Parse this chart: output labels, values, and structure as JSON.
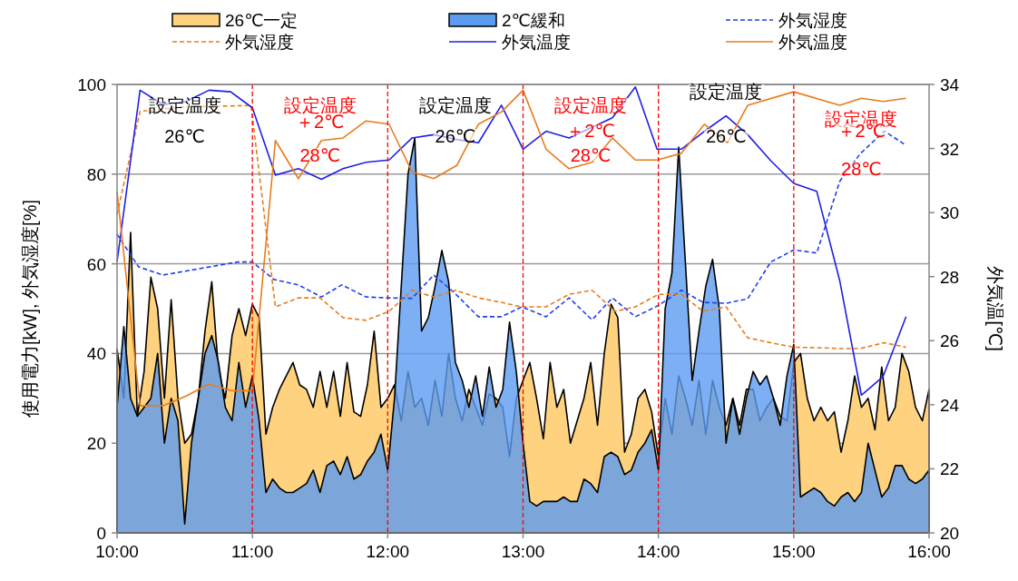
{
  "chart_data": {
    "type": "area",
    "xlim": [
      10,
      16
    ],
    "xticks": [
      {
        "value": 10,
        "label": "10:00"
      },
      {
        "value": 11,
        "label": "11:00"
      },
      {
        "value": 12,
        "label": "12:00"
      },
      {
        "value": 13,
        "label": "13:00"
      },
      {
        "value": 14,
        "label": "14:00"
      },
      {
        "value": 15,
        "label": "15:00"
      },
      {
        "value": 16,
        "label": "16:00"
      }
    ],
    "ylim": [
      0,
      100
    ],
    "yticks": [
      0,
      20,
      40,
      60,
      80,
      100
    ],
    "y2lim": [
      20,
      34
    ],
    "y2ticks": [
      20,
      22,
      24,
      26,
      28,
      30,
      32,
      34
    ],
    "ylabel": "使用電力[kW], 外気湿度[%]",
    "y2label": "外気温[℃]",
    "grid": "y",
    "legend": "top",
    "x": [
      10,
      10.05,
      10.1,
      10.15,
      10.2,
      10.25,
      10.3,
      10.35,
      10.4,
      10.45,
      10.5,
      10.55,
      10.6,
      10.65,
      10.7,
      10.75,
      10.8,
      10.85,
      10.9,
      10.95,
      11,
      11.05,
      11.1,
      11.15,
      11.2,
      11.25,
      11.3,
      11.35,
      11.4,
      11.45,
      11.5,
      11.55,
      11.6,
      11.65,
      11.7,
      11.75,
      11.8,
      11.85,
      11.9,
      11.95,
      12,
      12.05,
      12.1,
      12.15,
      12.2,
      12.25,
      12.3,
      12.35,
      12.4,
      12.45,
      12.5,
      12.55,
      12.6,
      12.65,
      12.7,
      12.75,
      12.8,
      12.85,
      12.9,
      12.95,
      13,
      13.05,
      13.1,
      13.15,
      13.2,
      13.25,
      13.3,
      13.35,
      13.4,
      13.45,
      13.5,
      13.55,
      13.6,
      13.65,
      13.7,
      13.75,
      13.8,
      13.85,
      13.9,
      13.95,
      14,
      14.05,
      14.1,
      14.15,
      14.2,
      14.25,
      14.3,
      14.35,
      14.4,
      14.45,
      14.5,
      14.55,
      14.6,
      14.65,
      14.7,
      14.75,
      14.8,
      14.85,
      14.9,
      14.95,
      15,
      15.05,
      15.1,
      15.15,
      15.2,
      15.25,
      15.3,
      15.35,
      15.4,
      15.45,
      15.5,
      15.55,
      15.6,
      15.65,
      15.7,
      15.75,
      15.8,
      15.85,
      15.9,
      15.95,
      16
    ],
    "series": [
      {
        "name": "26℃一定",
        "type": "area",
        "color": "#ffd27f",
        "values": [
          41,
          30,
          67,
          26,
          36,
          57,
          50,
          30,
          52,
          30,
          20,
          22,
          30,
          45,
          56,
          36,
          30,
          44,
          50,
          44,
          51,
          48,
          22,
          28,
          32,
          35,
          38,
          33,
          32,
          28,
          36,
          28,
          36,
          26,
          38,
          27,
          26,
          33,
          45,
          28,
          30,
          33,
          25,
          36,
          28,
          30,
          24,
          34,
          26,
          40,
          30,
          25,
          32,
          28,
          24,
          31,
          30,
          28,
          17,
          30,
          34,
          38,
          30,
          21,
          38,
          28,
          32,
          20,
          25,
          30,
          38,
          24,
          40,
          51,
          48,
          18,
          22,
          30,
          32,
          27,
          17,
          30,
          22,
          35,
          30,
          24,
          34,
          22,
          34,
          28,
          24,
          30,
          24,
          32,
          32,
          25,
          28,
          30,
          26,
          25,
          38,
          40,
          30,
          25,
          28,
          25,
          27,
          18,
          25,
          35,
          28,
          30,
          23,
          37,
          25,
          28,
          40,
          36,
          28,
          25,
          32
        ]
      },
      {
        "name": "2℃緩和",
        "type": "area",
        "color": "#5b9bf0",
        "values": [
          28,
          46,
          30,
          26,
          28,
          30,
          40,
          20,
          30,
          25,
          2,
          20,
          30,
          40,
          44,
          38,
          28,
          25,
          38,
          28,
          35,
          25,
          9,
          12,
          10,
          9,
          9,
          10,
          11,
          14,
          9,
          15,
          16,
          13,
          17,
          12,
          13,
          16,
          18,
          22,
          14,
          30,
          55,
          80,
          88,
          45,
          48,
          55,
          63,
          56,
          38,
          34,
          28,
          35,
          26,
          37,
          28,
          32,
          47,
          36,
          20,
          7,
          6,
          7,
          7,
          7,
          8,
          7,
          7,
          12,
          11,
          9,
          17,
          18,
          17,
          13,
          14,
          18,
          20,
          23,
          14,
          50,
          58,
          86,
          60,
          34,
          45,
          55,
          61,
          50,
          20,
          30,
          22,
          30,
          36,
          33,
          35,
          30,
          24,
          35,
          42,
          8,
          9,
          10,
          9,
          7,
          6,
          8,
          9,
          7,
          9,
          20,
          14,
          8,
          10,
          15,
          15,
          12,
          11,
          12,
          14
        ]
      },
      {
        "name": "外気湿度",
        "type": "line",
        "line_style": "dashed",
        "color": "#1f3ff0",
        "x": [
          10,
          10.16,
          10.34,
          10.89,
          11,
          11.16,
          11.34,
          11.51,
          11.66,
          11.84,
          12.01,
          12.18,
          12.34,
          12.49,
          12.67,
          12.84,
          12.99,
          13.17,
          13.34,
          13.51,
          13.66,
          13.83,
          14,
          14.17,
          14.33,
          14.5,
          14.66,
          14.83,
          15,
          15.17,
          15.34,
          15.49,
          15.67,
          15.83
        ],
        "values": [
          66.6,
          59.3,
          57.5,
          60.4,
          60.4,
          56.5,
          55.3,
          52.6,
          55.3,
          52.6,
          52.4,
          52.3,
          57.5,
          53.6,
          48.2,
          48.2,
          50.4,
          48.2,
          52.4,
          47.5,
          52.4,
          48.2,
          50.7,
          54.1,
          51.4,
          51.2,
          52.2,
          60.4,
          63.1,
          62.4,
          78.4,
          84.5,
          89.6,
          86.4
        ]
      },
      {
        "name": "外気湿度",
        "type": "line",
        "line_style": "dashed",
        "color": "#e87c1e",
        "x": [
          10,
          10.17,
          10.5,
          10.99,
          11.17,
          11.34,
          11.5,
          11.67,
          11.84,
          12.01,
          12.18,
          12.34,
          12.5,
          12.67,
          12.84,
          12.99,
          13.17,
          13.34,
          13.51,
          13.68,
          13.83,
          14,
          14.17,
          14.33,
          14.5,
          14.66,
          14.83,
          15,
          15.17,
          15.34,
          15.49,
          15.67,
          15.83
        ],
        "values": [
          71,
          94,
          95,
          95.3,
          50.4,
          52.4,
          52.4,
          48,
          47.4,
          49.4,
          54.1,
          52.6,
          54.1,
          52.4,
          51.4,
          50.4,
          50.4,
          53.2,
          54.1,
          49.4,
          50.4,
          53.2,
          53.2,
          49.4,
          50.4,
          43.5,
          42.4,
          41.4,
          41.3,
          41.1,
          41.1,
          42.4,
          41.4
        ]
      },
      {
        "name": "外気温度",
        "type": "line",
        "axis": "y2",
        "color": "#1f1fe6",
        "x": [
          10,
          10.17,
          10.34,
          10.51,
          10.68,
          10.84,
          11,
          11.17,
          11.34,
          11.51,
          11.67,
          11.84,
          12.01,
          12.18,
          12.34,
          12.51,
          12.67,
          12.84,
          13,
          13.17,
          13.34,
          13.66,
          13.83,
          13.99,
          14.17,
          14.34,
          14.5,
          14.66,
          14.83,
          15,
          15.17,
          15.34,
          15.5,
          15.66,
          15.83
        ],
        "values": [
          28.46,
          33.82,
          33.37,
          33.47,
          33.82,
          33.77,
          33.27,
          31.17,
          31.37,
          31.04,
          31.37,
          31.57,
          31.64,
          32.33,
          32.43,
          32.28,
          32.18,
          33.35,
          31.98,
          32.54,
          32.33,
          32.96,
          33.92,
          31.98,
          31.98,
          32.54,
          33.02,
          32.43,
          31.62,
          30.91,
          30.66,
          27.87,
          24.3,
          24.88,
          26.75
        ]
      },
      {
        "name": "外気温度",
        "type": "line",
        "axis": "y2",
        "color": "#e87c1e",
        "x": [
          10,
          10.17,
          10.34,
          10.51,
          10.68,
          10.84,
          11,
          11.17,
          11.34,
          11.51,
          11.67,
          11.84,
          12.01,
          12.18,
          12.34,
          12.51,
          12.67,
          12.84,
          13,
          13.17,
          13.34,
          13.51,
          13.66,
          13.83,
          13.99,
          14.17,
          14.34,
          14.51,
          14.66,
          15,
          15.34,
          15.5,
          15.66,
          15.83
        ],
        "values": [
          30.66,
          23.97,
          23.97,
          24.27,
          24.65,
          24.44,
          24.44,
          32.25,
          31.06,
          32.25,
          32.33,
          32.86,
          32.76,
          31.27,
          31.06,
          31.47,
          32.76,
          33.14,
          33.82,
          31.98,
          31.37,
          31.57,
          32.33,
          31.64,
          31.64,
          31.85,
          32.76,
          32.18,
          33.35,
          33.77,
          33.35,
          33.57,
          33.47,
          33.57
        ]
      }
    ],
    "ref_lines": [
      {
        "axis": "x",
        "value": 11,
        "color": "#ff0000",
        "line_style": "dashed"
      },
      {
        "axis": "x",
        "value": 12,
        "color": "#ff0000",
        "line_style": "dashed"
      },
      {
        "axis": "x",
        "value": 13,
        "color": "#ff0000",
        "line_style": "dashed"
      },
      {
        "axis": "x",
        "value": 14,
        "color": "#ff0000",
        "line_style": "dashed"
      },
      {
        "axis": "x",
        "value": 15,
        "color": "#ff0000",
        "line_style": "dashed"
      }
    ],
    "annotations": [
      "設定温度",
      "26℃",
      "設定温度",
      "＋2℃",
      "28℃",
      "設定温度",
      "26℃",
      "設定温度",
      "＋2℃",
      "28℃",
      "設定温度",
      "26℃",
      "設定温度",
      "＋2℃",
      "28℃"
    ]
  }
}
